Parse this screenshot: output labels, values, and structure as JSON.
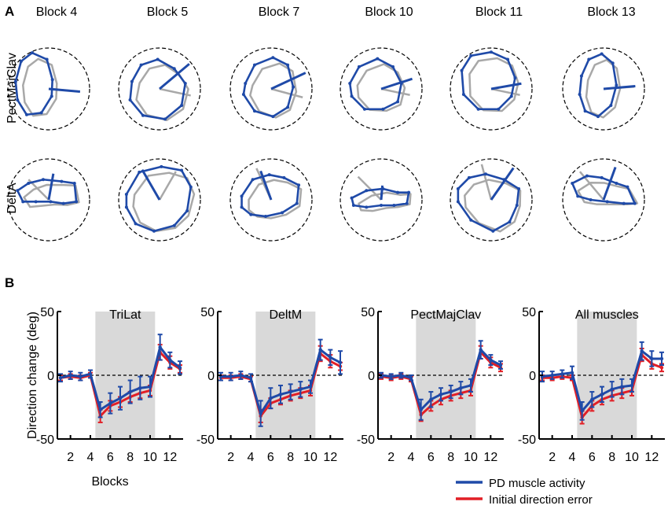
{
  "panel_a": {
    "letter": "A",
    "blocks": [
      "Block 4",
      "Block 5",
      "Block 7",
      "Block 10",
      "Block 11",
      "Block 13"
    ],
    "rows": [
      {
        "label": "PectMajClav",
        "pd_angles_deg": [
          -5,
          40,
          25,
          18,
          10,
          5
        ],
        "pd_lengths": [
          0.77,
          0.95,
          0.93,
          0.8,
          0.75,
          0.78
        ],
        "gray_angles_deg": [
          -5,
          -12,
          -15,
          -12,
          -12,
          4
        ],
        "gray_lengths": [
          0.75,
          0.78,
          0.8,
          0.72,
          0.72,
          0.75
        ],
        "blue_shapes": [
          [
            [
              -0.9,
              0.2
            ],
            [
              -0.75,
              0.75
            ],
            [
              -0.45,
              0.98
            ],
            [
              -0.05,
              0.8
            ],
            [
              0.1,
              0.25
            ],
            [
              0.08,
              -0.2
            ],
            [
              -0.2,
              -0.65
            ],
            [
              -0.6,
              -0.7
            ],
            [
              -0.85,
              -0.3
            ]
          ],
          [
            [
              -0.75,
              0.2
            ],
            [
              -0.5,
              0.65
            ],
            [
              -0.05,
              0.8
            ],
            [
              0.4,
              0.55
            ],
            [
              0.7,
              0.15
            ],
            [
              0.6,
              -0.45
            ],
            [
              0.15,
              -0.82
            ],
            [
              -0.45,
              -0.72
            ],
            [
              -0.8,
              -0.3
            ]
          ],
          [
            [
              -0.7,
              0.15
            ],
            [
              -0.45,
              0.65
            ],
            [
              0.05,
              0.85
            ],
            [
              0.45,
              0.65
            ],
            [
              0.6,
              0.05
            ],
            [
              0.45,
              -0.5
            ],
            [
              0.05,
              -0.75
            ],
            [
              -0.45,
              -0.6
            ],
            [
              -0.75,
              -0.15
            ]
          ],
          [
            [
              -0.85,
              0.15
            ],
            [
              -0.6,
              0.6
            ],
            [
              -0.1,
              0.82
            ],
            [
              0.32,
              0.6
            ],
            [
              0.55,
              0.15
            ],
            [
              0.45,
              -0.35
            ],
            [
              0.05,
              -0.55
            ],
            [
              -0.45,
              -0.55
            ],
            [
              -0.8,
              -0.2
            ]
          ],
          [
            [
              -0.8,
              0.5
            ],
            [
              -0.55,
              0.9
            ],
            [
              0.0,
              1.0
            ],
            [
              0.45,
              0.8
            ],
            [
              0.65,
              0.3
            ],
            [
              0.55,
              -0.2
            ],
            [
              0.2,
              -0.55
            ],
            [
              -0.35,
              -0.55
            ],
            [
              -0.75,
              -0.15
            ]
          ],
          [
            [
              -0.6,
              0.35
            ],
            [
              -0.4,
              0.8
            ],
            [
              -0.05,
              0.95
            ],
            [
              0.25,
              0.7
            ],
            [
              0.35,
              0.1
            ],
            [
              0.2,
              -0.45
            ],
            [
              -0.15,
              -0.75
            ],
            [
              -0.5,
              -0.6
            ],
            [
              -0.65,
              -0.15
            ]
          ]
        ]
      },
      {
        "label": "DeltA",
        "pd_angles_deg": [
          80,
          120,
          110,
          85,
          55,
          70
        ],
        "pd_lengths": [
          0.65,
          0.85,
          0.75,
          0.35,
          0.95,
          0.85
        ],
        "gray_angles_deg": [
          135,
          60,
          115,
          135,
          105,
          130
        ],
        "gray_lengths": [
          0.7,
          0.8,
          0.85,
          0.8,
          0.9,
          0.9
        ],
        "blue_shapes": [
          [
            [
              -0.85,
              0.25
            ],
            [
              -0.55,
              0.45
            ],
            [
              -0.15,
              0.55
            ],
            [
              0.35,
              0.5
            ],
            [
              0.7,
              0.45
            ],
            [
              0.75,
              -0.05
            ],
            [
              0.4,
              -0.1
            ],
            [
              0.05,
              -0.05
            ],
            [
              -0.35,
              -0.05
            ],
            [
              -0.7,
              -0.05
            ]
          ],
          [
            [
              -0.9,
              0.15
            ],
            [
              -0.55,
              0.75
            ],
            [
              0.05,
              0.9
            ],
            [
              0.6,
              0.8
            ],
            [
              0.85,
              0.35
            ],
            [
              0.75,
              -0.3
            ],
            [
              0.4,
              -0.7
            ],
            [
              -0.15,
              -0.85
            ],
            [
              -0.65,
              -0.65
            ],
            [
              -0.9,
              -0.2
            ]
          ],
          [
            [
              -0.8,
              0.1
            ],
            [
              -0.5,
              0.55
            ],
            [
              -0.05,
              0.68
            ],
            [
              0.35,
              0.6
            ],
            [
              0.75,
              0.4
            ],
            [
              0.7,
              -0.1
            ],
            [
              0.3,
              -0.35
            ],
            [
              -0.15,
              -0.45
            ],
            [
              -0.55,
              -0.4
            ],
            [
              -0.8,
              -0.2
            ]
          ],
          [
            [
              -0.8,
              0.05
            ],
            [
              -0.4,
              0.25
            ],
            [
              0.05,
              0.3
            ],
            [
              0.45,
              0.2
            ],
            [
              0.75,
              0.2
            ],
            [
              0.7,
              -0.1
            ],
            [
              0.35,
              -0.15
            ],
            [
              0.0,
              -0.15
            ],
            [
              -0.4,
              -0.2
            ],
            [
              -0.75,
              -0.15
            ]
          ],
          [
            [
              -0.9,
              0.3
            ],
            [
              -0.6,
              0.6
            ],
            [
              -0.15,
              0.7
            ],
            [
              0.35,
              0.55
            ],
            [
              0.75,
              0.3
            ],
            [
              0.7,
              -0.15
            ],
            [
              0.5,
              -0.6
            ],
            [
              0.05,
              -0.85
            ],
            [
              -0.55,
              -0.55
            ],
            [
              -0.9,
              -0.05
            ]
          ],
          [
            [
              -0.85,
              0.45
            ],
            [
              -0.45,
              0.65
            ],
            [
              -0.05,
              0.6
            ],
            [
              0.35,
              0.45
            ],
            [
              0.65,
              0.35
            ],
            [
              0.85,
              -0.1
            ],
            [
              0.55,
              -0.1
            ],
            [
              0.1,
              -0.05
            ],
            [
              -0.35,
              0.0
            ],
            [
              -0.7,
              0.1
            ]
          ]
        ]
      }
    ]
  },
  "panel_b": {
    "letter": "B",
    "ylabel": "Direction change (deg)",
    "xlabel": "Blocks",
    "legend": [
      {
        "label": "PD muscle activity",
        "color": "#1f4aa8"
      },
      {
        "label": "Initial direction error",
        "color": "#e21f26"
      }
    ],
    "shaded_blocks": [
      4.5,
      10.5
    ],
    "shade_color": "#d9d9d9"
  },
  "chart_data": [
    {
      "type": "line",
      "title": "TriLat",
      "x": [
        1,
        2,
        3,
        4,
        5,
        6,
        7,
        8,
        9,
        10,
        11,
        12,
        13
      ],
      "ylim": [
        -50,
        50
      ],
      "xticks": [
        "2",
        "4",
        "6",
        "8",
        "10",
        "12"
      ],
      "yticks": [
        "50",
        "0",
        "-50"
      ],
      "series": [
        {
          "name": "PD muscle activity",
          "color": "#1f4aa8",
          "values": [
            -2,
            0,
            -1,
            1,
            -27,
            -22,
            -18,
            -13,
            -10,
            -9,
            22,
            12,
            6
          ],
          "errors": [
            3,
            3,
            3,
            3,
            6,
            8,
            9,
            9,
            9,
            8,
            10,
            6,
            5
          ]
        },
        {
          "name": "Initial direction error",
          "color": "#e21f26",
          "values": [
            -2,
            -1,
            -2,
            0,
            -32,
            -24,
            -21,
            -17,
            -14,
            -12,
            18,
            10,
            5
          ],
          "errors": [
            2,
            2,
            2,
            2,
            5,
            4,
            4,
            4,
            4,
            4,
            6,
            5,
            3
          ]
        }
      ]
    },
    {
      "type": "line",
      "title": "DeltM",
      "x": [
        1,
        2,
        3,
        4,
        5,
        6,
        7,
        8,
        9,
        10,
        11,
        12,
        13
      ],
      "ylim": [
        -50,
        50
      ],
      "xticks": [
        "2",
        "4",
        "6",
        "8",
        "10",
        "12"
      ],
      "yticks": [
        "50",
        "0",
        "-50"
      ],
      "series": [
        {
          "name": "PD muscle activity",
          "color": "#1f4aa8",
          "values": [
            -1,
            -1,
            0,
            -2,
            -30,
            -18,
            -15,
            -13,
            -11,
            -9,
            20,
            14,
            10
          ],
          "errors": [
            3,
            3,
            3,
            3,
            10,
            8,
            7,
            6,
            6,
            5,
            8,
            6,
            9
          ]
        },
        {
          "name": "Initial direction error",
          "color": "#e21f26",
          "values": [
            -2,
            -2,
            -1,
            -3,
            -32,
            -22,
            -19,
            -16,
            -14,
            -12,
            17,
            11,
            7
          ],
          "errors": [
            2,
            2,
            2,
            2,
            5,
            4,
            4,
            4,
            4,
            4,
            6,
            5,
            3
          ]
        }
      ]
    },
    {
      "type": "line",
      "title": "PectMajClav",
      "x": [
        1,
        2,
        3,
        4,
        5,
        6,
        7,
        8,
        9,
        10,
        11,
        12,
        13
      ],
      "ylim": [
        -50,
        50
      ],
      "xticks": [
        "2",
        "4",
        "6",
        "8",
        "10",
        "12"
      ],
      "yticks": [
        "50",
        "0",
        "-50"
      ],
      "series": [
        {
          "name": "PD muscle activity",
          "color": "#1f4aa8",
          "values": [
            0,
            -1,
            0,
            -2,
            -27,
            -19,
            -15,
            -13,
            -10,
            -8,
            20,
            12,
            8
          ],
          "errors": [
            2,
            2,
            2,
            2,
            8,
            6,
            5,
            5,
            5,
            5,
            7,
            4,
            3
          ]
        },
        {
          "name": "Initial direction error",
          "color": "#e21f26",
          "values": [
            -1,
            -2,
            -1,
            -3,
            -31,
            -24,
            -19,
            -16,
            -14,
            -12,
            18,
            10,
            6
          ],
          "errors": [
            2,
            2,
            2,
            2,
            5,
            4,
            4,
            4,
            4,
            4,
            5,
            4,
            3
          ]
        }
      ]
    },
    {
      "type": "line",
      "title": "All muscles",
      "x": [
        1,
        2,
        3,
        4,
        5,
        6,
        7,
        8,
        9,
        10,
        11,
        12,
        13
      ],
      "ylim": [
        -50,
        50
      ],
      "xticks": [
        "2",
        "4",
        "6",
        "8",
        "10",
        "12"
      ],
      "yticks": [
        "50",
        "0",
        "-50"
      ],
      "series": [
        {
          "name": "PD muscle activity",
          "color": "#1f4aa8",
          "values": [
            -1,
            0,
            1,
            2,
            -28,
            -19,
            -15,
            -11,
            -9,
            -8,
            19,
            13,
            13
          ],
          "errors": [
            4,
            3,
            3,
            5,
            7,
            6,
            6,
            6,
            6,
            5,
            7,
            6,
            5
          ]
        },
        {
          "name": "Initial direction error",
          "color": "#e21f26",
          "values": [
            -2,
            -2,
            -1,
            -2,
            -33,
            -24,
            -19,
            -16,
            -14,
            -12,
            16,
            9,
            6
          ],
          "errors": [
            2,
            2,
            2,
            2,
            5,
            4,
            4,
            4,
            4,
            4,
            5,
            4,
            3
          ]
        }
      ]
    }
  ]
}
